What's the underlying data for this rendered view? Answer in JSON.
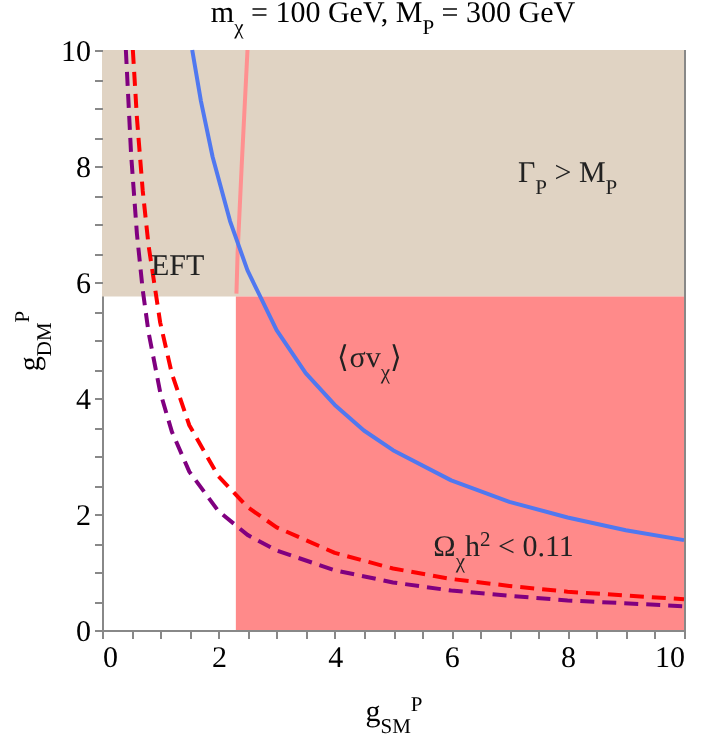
{
  "chart_data": {
    "type": "line",
    "title": "m$_{χ}$ = 100 GeV, M$_{P}$ = 300 GeV",
    "xlabel": "g$_{SM}$$^{P}$",
    "ylabel": "g$_{DM}$$^{P}$",
    "xlim": [
      0,
      10
    ],
    "ylim": [
      0,
      10
    ],
    "xticks": [
      0,
      {
        "value": 0.5,
        "label": null
      },
      {
        "value": 1,
        "label": null
      },
      {
        "value": 1.5,
        "label": null
      },
      2,
      {
        "value": 2.5,
        "label": null
      },
      {
        "value": 3,
        "label": null
      },
      {
        "value": 3.5,
        "label": null
      },
      4,
      {
        "value": 4.5,
        "label": null
      },
      {
        "value": 5,
        "label": null
      },
      {
        "value": 5.5,
        "label": null
      },
      6,
      {
        "value": 6.5,
        "label": null
      },
      {
        "value": 7,
        "label": null
      },
      {
        "value": 7.5,
        "label": null
      },
      8,
      {
        "value": 8.5,
        "label": null
      },
      {
        "value": 9,
        "label": null
      },
      {
        "value": 9.5,
        "label": null
      },
      10
    ],
    "yticks": [
      0,
      {
        "value": 0.5,
        "label": null
      },
      {
        "value": 1,
        "label": null
      },
      {
        "value": 1.5,
        "label": null
      },
      2,
      {
        "value": 2.5,
        "label": null
      },
      {
        "value": 3,
        "label": null
      },
      {
        "value": 3.5,
        "label": null
      },
      4,
      {
        "value": 4.5,
        "label": null
      },
      {
        "value": 5,
        "label": null
      },
      {
        "value": 5.5,
        "label": null
      },
      6,
      {
        "value": 6.5,
        "label": null
      },
      {
        "value": 7,
        "label": null
      },
      {
        "value": 7.5,
        "label": null
      },
      8,
      {
        "value": 8.5,
        "label": null
      },
      {
        "value": 9,
        "label": null
      },
      {
        "value": 9.5,
        "label": null
      },
      10
    ],
    "bands": [
      {
        "axis": "y",
        "from": 5.75,
        "to": 10,
        "color": "#e0d3c3"
      }
    ],
    "series": [
      {
        "type": "area",
        "color": "#ff8a8a",
        "x": [
          2.3,
          10
        ],
        "values": [
          5.75,
          5.75
        ]
      },
      {
        "color": "#ff9090",
        "line_style": "solid",
        "x": [
          2.31,
          2.33,
          2.4,
          2.5
        ],
        "values": [
          5.8,
          6.5,
          8,
          10
        ]
      },
      {
        "color": "#5078f0",
        "line_style": "solid",
        "x": [
          1.55,
          1.7,
          1.9,
          2.2,
          2.5,
          3,
          3.5,
          4,
          4.5,
          5,
          6,
          7,
          8,
          9,
          10
        ],
        "values": [
          10,
          9.12,
          8.16,
          7.05,
          6.2,
          5.17,
          4.43,
          3.88,
          3.44,
          3.1,
          2.58,
          2.21,
          1.94,
          1.72,
          1.55
        ]
      },
      {
        "color": "#ff0000",
        "line_style": "dashed",
        "x": [
          0.53,
          0.6,
          0.7,
          0.8,
          1,
          1.2,
          1.5,
          2,
          2.5,
          3,
          4,
          5,
          6,
          7,
          8,
          10
        ],
        "values": [
          10,
          8.83,
          7.57,
          6.63,
          5.3,
          4.42,
          3.53,
          2.65,
          2.12,
          1.77,
          1.33,
          1.06,
          0.88,
          0.76,
          0.66,
          0.53
        ]
      },
      {
        "color": "#800080",
        "line_style": "dashed",
        "x": [
          0.41,
          0.5,
          0.6,
          0.7,
          0.8,
          1,
          1.2,
          1.5,
          2,
          2.5,
          3,
          4,
          5,
          6,
          7,
          8,
          10
        ],
        "values": [
          10,
          8.2,
          6.83,
          5.86,
          5.13,
          4.1,
          3.42,
          2.73,
          2.05,
          1.64,
          1.37,
          1.03,
          0.82,
          0.68,
          0.59,
          0.51,
          0.41
        ]
      }
    ],
    "annotations": [
      "Γ$_{P}$ > M$_{P}$",
      "EFT",
      "⟨σv$_{χ}$⟩",
      "Ω$_{χ}$h$^{2}$ < 0.11"
    ]
  }
}
